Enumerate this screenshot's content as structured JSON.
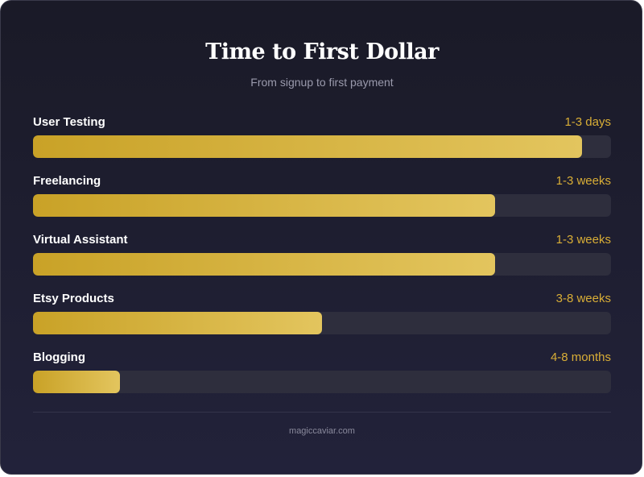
{
  "chart_data": {
    "type": "bar",
    "orientation": "horizontal",
    "title": "Time to First Dollar",
    "subtitle": "From signup to first payment",
    "categories": [
      "User Testing",
      "Freelancing",
      "Virtual Assistant",
      "Etsy Products",
      "Blogging"
    ],
    "value_labels": [
      "1-3 days",
      "1-3 weeks",
      "1-3 weeks",
      "3-8 weeks",
      "4-8 months"
    ],
    "values": [
      95,
      80,
      80,
      50,
      15
    ],
    "ylim": [
      0,
      100
    ],
    "grid": false,
    "colors": {
      "bar_start": "#c9a227",
      "bar_end": "#e3c55e",
      "track": "#2e2e3d",
      "value_text": "#d9ae36"
    }
  },
  "footer": "magiccaviar.com"
}
